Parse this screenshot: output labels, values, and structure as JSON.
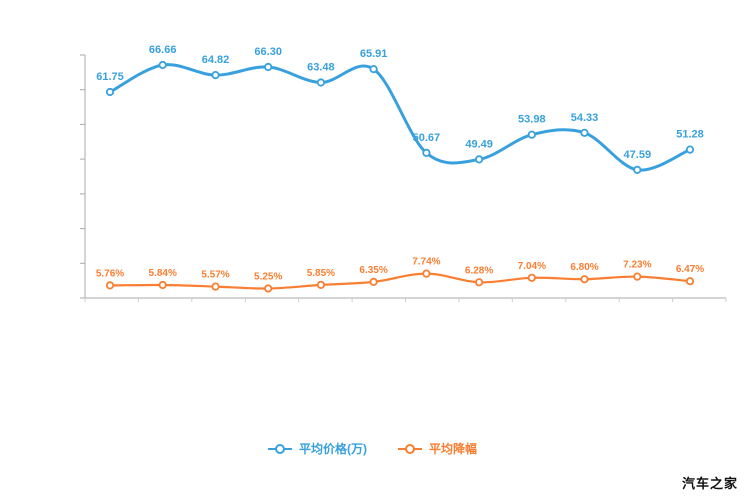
{
  "watermark": "汽车之家",
  "chart_data": {
    "type": "line",
    "title": "",
    "xlabel": "",
    "ylabel": "",
    "grid": false,
    "legend_position": "bottom",
    "categories": [
      "",
      "",
      "",
      "",
      "",
      "",
      "",
      "",
      "",
      "",
      "",
      ""
    ],
    "series": [
      {
        "name": "平均价格(万)",
        "color": "#38a1dd",
        "values": [
          61.75,
          66.66,
          64.82,
          66.3,
          63.48,
          65.91,
          50.67,
          49.49,
          53.98,
          54.33,
          47.59,
          51.28
        ],
        "labels": [
          "61.75",
          "66.66",
          "64.82",
          "66.30",
          "63.48",
          "65.91",
          "50.67",
          "49.49",
          "53.98",
          "54.33",
          "47.59",
          "51.28"
        ]
      },
      {
        "name": "平均降幅",
        "color": "#f97e32",
        "values": [
          5.76,
          5.84,
          5.57,
          5.25,
          5.85,
          6.35,
          7.74,
          6.28,
          7.04,
          6.8,
          7.23,
          6.47
        ],
        "labels": [
          "5.76%",
          "5.84%",
          "5.57%",
          "5.25%",
          "5.85%",
          "6.35%",
          "7.74%",
          "6.28%",
          "7.04%",
          "6.80%",
          "7.23%",
          "6.47%"
        ]
      }
    ]
  }
}
